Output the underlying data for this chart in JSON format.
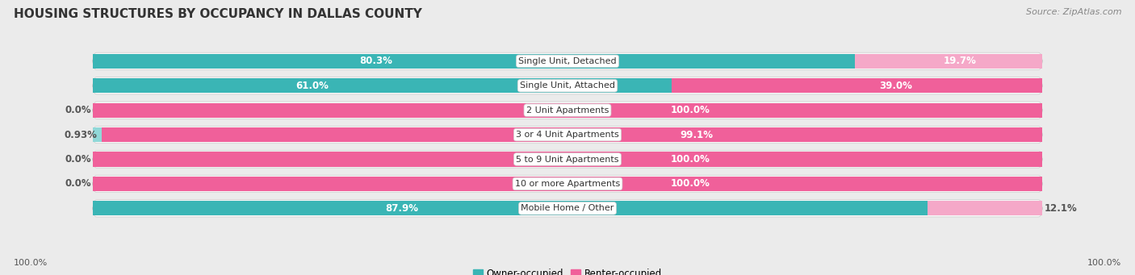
{
  "title": "HOUSING STRUCTURES BY OCCUPANCY IN DALLAS COUNTY",
  "source": "Source: ZipAtlas.com",
  "categories": [
    "Single Unit, Detached",
    "Single Unit, Attached",
    "2 Unit Apartments",
    "3 or 4 Unit Apartments",
    "5 to 9 Unit Apartments",
    "10 or more Apartments",
    "Mobile Home / Other"
  ],
  "owner_pct": [
    80.3,
    61.0,
    0.0,
    0.93,
    0.0,
    0.0,
    87.9
  ],
  "renter_pct": [
    19.7,
    39.0,
    100.0,
    99.1,
    100.0,
    100.0,
    12.1
  ],
  "owner_color": "#3ab5b5",
  "owner_color_light": "#90d8d8",
  "renter_color": "#f0609a",
  "renter_color_light": "#f5a8c8",
  "bg_color": "#ebebeb",
  "row_bg": "#e0e0e0",
  "bar_bg": "#f8f8f8",
  "title_fontsize": 11,
  "source_fontsize": 8,
  "bar_label_fontsize": 8.5,
  "cat_label_fontsize": 8,
  "legend_fontsize": 8.5,
  "axis_label_fontsize": 8,
  "bar_height": 0.68,
  "n_rows": 7,
  "xlim_left": -50,
  "xlim_right": 150
}
